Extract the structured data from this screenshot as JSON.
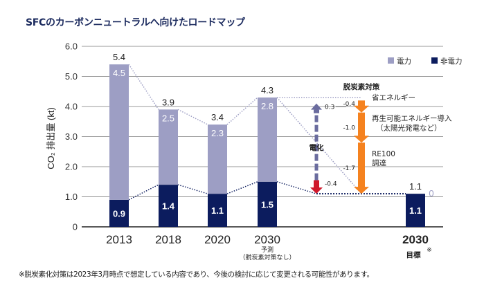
{
  "title": "SFCのカーボンニュートラルへ向けたロードマップ",
  "footnote": "※脱炭素化対策は2023年3月時点で想定している内容であり、今後の検討に応じて変更される可能性があります。",
  "colors": {
    "electric": "#9d9ec4",
    "non_electric": "#0c1c5e",
    "decarb": "#f5821f",
    "electrify_up": "#6a6c9e",
    "electrify_down": "#d0192b",
    "grid": "#9a9a9a",
    "axis": "#222222",
    "zero_label": "#9d9ec4"
  },
  "chart_data": {
    "type": "bar",
    "stacked": true,
    "title": "SFCのカーボンニュートラルへ向けたロードマップ",
    "xlabel": "",
    "ylabel": "CO₂ 排出量 (kt)",
    "ylim": [
      0,
      6.0
    ],
    "yticks": [
      0,
      1.0,
      2.0,
      3.0,
      4.0,
      5.0,
      6.0
    ],
    "ytick_labels": [
      "0",
      "1.0",
      "2.0",
      "3.0",
      "4.0",
      "5.0",
      "6.0"
    ],
    "grid": true,
    "legend_position": "top-right",
    "categories": [
      "2013",
      "2018",
      "2020",
      "2030",
      "2030"
    ],
    "category_sublabels": [
      "",
      "",
      "",
      "予測\n（脱炭素対策なし）",
      "目標※"
    ],
    "series": [
      {
        "name": "非電力",
        "values": [
          0.9,
          1.4,
          1.1,
          1.5,
          1.1
        ]
      },
      {
        "name": "電力",
        "values": [
          4.5,
          2.5,
          2.3,
          2.8,
          0
        ]
      }
    ],
    "totals": [
      5.4,
      3.9,
      3.4,
      4.3,
      1.1
    ],
    "segment_labels": {
      "non_electric": [
        "0.9",
        "1.4",
        "1.1",
        "1.5",
        "1.1"
      ],
      "electric": [
        "4.5",
        "2.5",
        "2.3",
        "2.8",
        "0"
      ]
    },
    "total_labels": [
      "5.4",
      "3.9",
      "3.4",
      "4.3",
      "1.1"
    ],
    "bridge": {
      "electrification": {
        "label": "電化",
        "increase": 0.3,
        "increase_label": "0.3",
        "decrease": -0.4,
        "decrease_label": "-0.4"
      },
      "decarbonization": {
        "header": "脱炭素対策",
        "steps": [
          {
            "value": -0.4,
            "label": "-0.4",
            "desc": "省エネルギー",
            "desc2": ""
          },
          {
            "value": -1.0,
            "label": "-1.0",
            "desc": "再生可能エネルギー導入",
            "desc2": "（太陽光発電など）"
          },
          {
            "value": -1.7,
            "label": "-1.7",
            "desc": "RE100",
            "desc2": "調達"
          }
        ]
      }
    }
  },
  "legend": [
    {
      "name": "電力",
      "color_key": "electric"
    },
    {
      "name": "非電力",
      "color_key": "non_electric"
    }
  ]
}
